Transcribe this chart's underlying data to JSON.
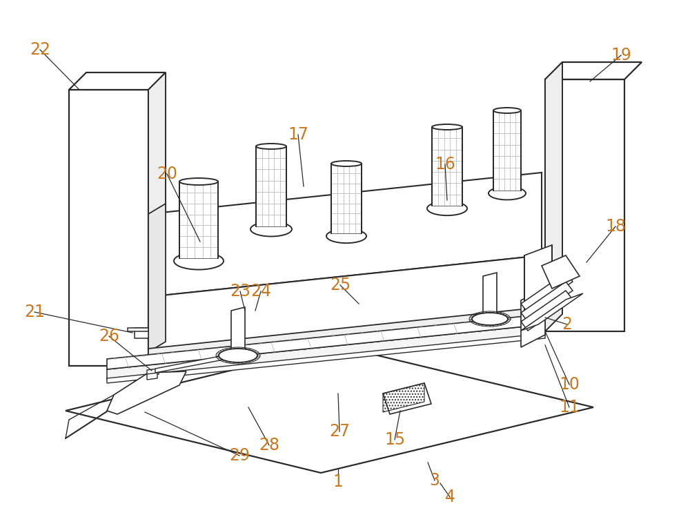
{
  "bg_color": "#ffffff",
  "line_color": "#2a2a2a",
  "label_color": "#c87820",
  "label_fontsize": 17,
  "fig_width": 10.0,
  "fig_height": 7.62,
  "dpi": 100
}
